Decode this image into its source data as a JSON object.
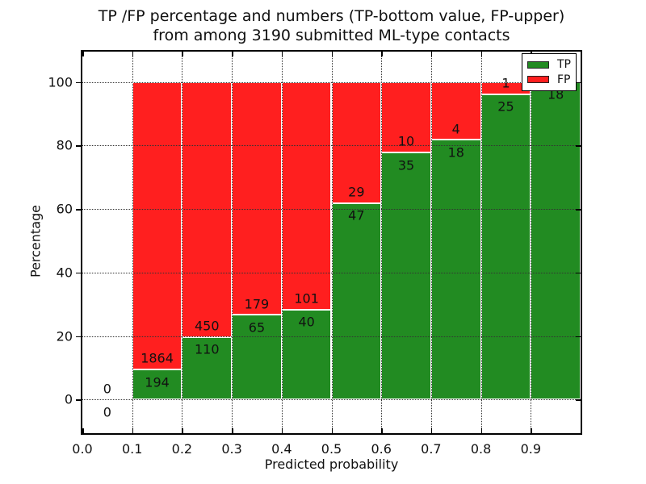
{
  "title": {
    "line1": "TP /FP percentage and numbers (TP-bottom value, FP-upper)",
    "line2": "from among 3190 submitted ML-type contacts"
  },
  "chart_data": {
    "type": "bar",
    "stacked": true,
    "title": "TP /FP percentage and numbers (TP-bottom value, FP-upper) from among 3190 submitted ML-type contacts",
    "xlabel": "Predicted probability",
    "ylabel": "Percentage",
    "xlim": [
      0.0,
      1.0
    ],
    "ylim": [
      -10.6,
      109.6
    ],
    "x_tick_labels": [
      "0.0",
      "0.1",
      "0.2",
      "0.3",
      "0.4",
      "0.5",
      "0.6",
      "0.7",
      "0.8",
      "0.9"
    ],
    "x_tick_values": [
      0.0,
      0.1,
      0.2,
      0.3,
      0.4,
      0.5,
      0.6,
      0.7,
      0.8,
      0.9
    ],
    "y_tick_labels": [
      "0",
      "20",
      "40",
      "60",
      "80",
      "100"
    ],
    "y_tick_values": [
      0,
      20,
      40,
      60,
      80,
      100
    ],
    "grid": true,
    "total_contacts": 3190,
    "series": [
      {
        "name": "TP",
        "color": "#228b22"
      },
      {
        "name": "FP",
        "color": "#ff1f1f"
      }
    ],
    "bins": [
      {
        "x0": 0.0,
        "x1": 0.1,
        "tp": 0,
        "fp": 0,
        "tp_pct": 0.0,
        "tp_label": "0",
        "fp_label": "0"
      },
      {
        "x0": 0.1,
        "x1": 0.2,
        "tp": 194,
        "fp": 1864,
        "tp_pct": 9.43,
        "tp_label": "194",
        "fp_label": "1864"
      },
      {
        "x0": 0.2,
        "x1": 0.3,
        "tp": 110,
        "fp": 450,
        "tp_pct": 19.64,
        "tp_label": "110",
        "fp_label": "450"
      },
      {
        "x0": 0.3,
        "x1": 0.4,
        "tp": 65,
        "fp": 179,
        "tp_pct": 26.64,
        "tp_label": "65",
        "fp_label": "179"
      },
      {
        "x0": 0.4,
        "x1": 0.5,
        "tp": 40,
        "fp": 101,
        "tp_pct": 28.37,
        "tp_label": "40",
        "fp_label": "101"
      },
      {
        "x0": 0.5,
        "x1": 0.6,
        "tp": 47,
        "fp": 29,
        "tp_pct": 61.84,
        "tp_label": "47",
        "fp_label": "29"
      },
      {
        "x0": 0.6,
        "x1": 0.7,
        "tp": 35,
        "fp": 10,
        "tp_pct": 77.78,
        "tp_label": "35",
        "fp_label": "10"
      },
      {
        "x0": 0.7,
        "x1": 0.8,
        "tp": 18,
        "fp": 4,
        "tp_pct": 81.82,
        "tp_label": "18",
        "fp_label": "4"
      },
      {
        "x0": 0.8,
        "x1": 0.9,
        "tp": 25,
        "fp": 1,
        "tp_pct": 96.15,
        "tp_label": "25",
        "fp_label": "1"
      },
      {
        "x0": 0.9,
        "x1": 1.0,
        "tp": 18,
        "fp": 0,
        "tp_pct": 100.0,
        "tp_label": "18",
        "fp_label": "0"
      }
    ],
    "legend": {
      "position": "upper right",
      "entries": [
        {
          "label": "TP",
          "color": "#228b22"
        },
        {
          "label": "FP",
          "color": "#ff1f1f"
        }
      ]
    }
  }
}
